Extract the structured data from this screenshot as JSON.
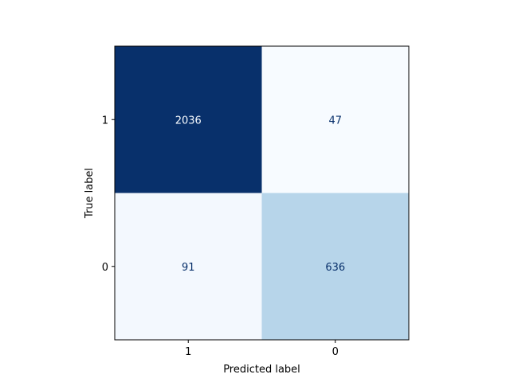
{
  "chart_data": {
    "type": "heatmap",
    "colormap": "Blues",
    "row_labels": [
      "1",
      "0"
    ],
    "col_labels": [
      "1",
      "0"
    ],
    "values": [
      [
        2036,
        47
      ],
      [
        91,
        636
      ]
    ],
    "xlabel": "Predicted label",
    "ylabel": "True label",
    "colors": {
      "high": "#08306b",
      "low": "#f7fbff",
      "mid": "#b9d5ea",
      "text_dark_bg": "#f7fbff",
      "text_light_bg": "#08306b"
    }
  }
}
